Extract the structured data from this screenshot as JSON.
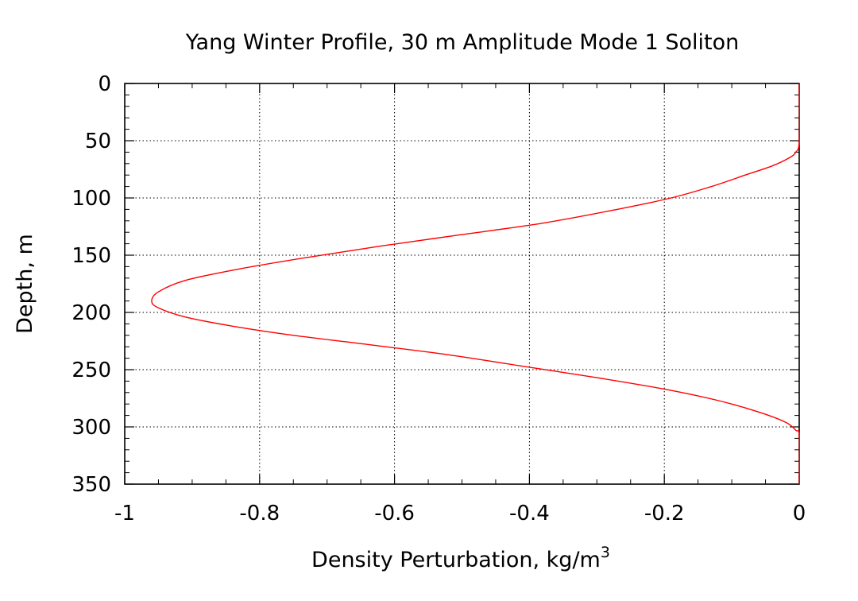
{
  "chart_data": {
    "type": "line",
    "title": "Yang Winter Profile, 30 m Amplitude Mode 1 Soliton",
    "xlabel": "Density Perturbation, kg/m",
    "xlabel_superscript": "3",
    "ylabel": "Depth, m",
    "xlim": [
      -1,
      0
    ],
    "ylim": [
      0,
      350
    ],
    "y_inverted": true,
    "x_ticks": [
      "-1",
      "-0.8",
      "-0.6",
      "-0.4",
      "-0.2",
      "0"
    ],
    "y_ticks": [
      "0",
      "50",
      "100",
      "150",
      "200",
      "250",
      "300",
      "350"
    ],
    "grid": true,
    "line_color": "#ff0000",
    "series": [
      {
        "points": [
          {
            "x": 0.0,
            "y": 0
          },
          {
            "x": 0.0,
            "y": 50
          },
          {
            "x": -0.005,
            "y": 60
          },
          {
            "x": -0.015,
            "y": 65
          },
          {
            "x": -0.04,
            "y": 72
          },
          {
            "x": -0.08,
            "y": 80
          },
          {
            "x": -0.13,
            "y": 90
          },
          {
            "x": -0.19,
            "y": 100
          },
          {
            "x": -0.27,
            "y": 110
          },
          {
            "x": -0.38,
            "y": 122
          },
          {
            "x": -0.5,
            "y": 132
          },
          {
            "x": -0.62,
            "y": 142
          },
          {
            "x": -0.73,
            "y": 152
          },
          {
            "x": -0.83,
            "y": 162
          },
          {
            "x": -0.91,
            "y": 172
          },
          {
            "x": -0.95,
            "y": 182
          },
          {
            "x": -0.96,
            "y": 190
          },
          {
            "x": -0.95,
            "y": 196
          },
          {
            "x": -0.91,
            "y": 204
          },
          {
            "x": -0.84,
            "y": 212
          },
          {
            "x": -0.75,
            "y": 220
          },
          {
            "x": -0.64,
            "y": 228
          },
          {
            "x": -0.52,
            "y": 237
          },
          {
            "x": -0.41,
            "y": 247
          },
          {
            "x": -0.3,
            "y": 257
          },
          {
            "x": -0.2,
            "y": 267
          },
          {
            "x": -0.12,
            "y": 277
          },
          {
            "x": -0.06,
            "y": 287
          },
          {
            "x": -0.02,
            "y": 296
          },
          {
            "x": -0.005,
            "y": 303
          },
          {
            "x": 0.0,
            "y": 308
          },
          {
            "x": 0.0,
            "y": 350
          }
        ]
      }
    ]
  }
}
